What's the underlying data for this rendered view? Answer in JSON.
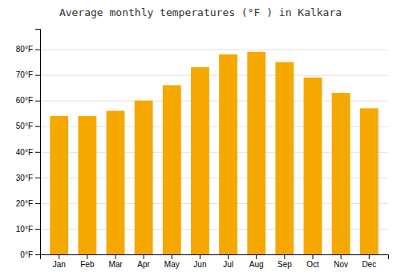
{
  "chart_data": {
    "type": "bar",
    "title": "Average monthly temperatures (°F ) in Kalkara",
    "categories": [
      "Jan",
      "Feb",
      "Mar",
      "Apr",
      "May",
      "Jun",
      "Jul",
      "Aug",
      "Sep",
      "Oct",
      "Nov",
      "Dec"
    ],
    "values": [
      54,
      54,
      56,
      60,
      66,
      73,
      78,
      79,
      75,
      69,
      63,
      57
    ],
    "color": "#F5A800",
    "ylim": [
      0,
      88
    ],
    "yticks": [
      {
        "value": 0,
        "label": "0°F"
      },
      {
        "value": 10,
        "label": "10°F"
      },
      {
        "value": 20,
        "label": "20°F"
      },
      {
        "value": 30,
        "label": "30°F"
      },
      {
        "value": 40,
        "label": "40°F"
      },
      {
        "value": 50,
        "label": "50°F"
      },
      {
        "value": 60,
        "label": "60°F"
      },
      {
        "value": 70,
        "label": "70°F"
      },
      {
        "value": 80,
        "label": "80°F"
      }
    ],
    "grid": true
  }
}
